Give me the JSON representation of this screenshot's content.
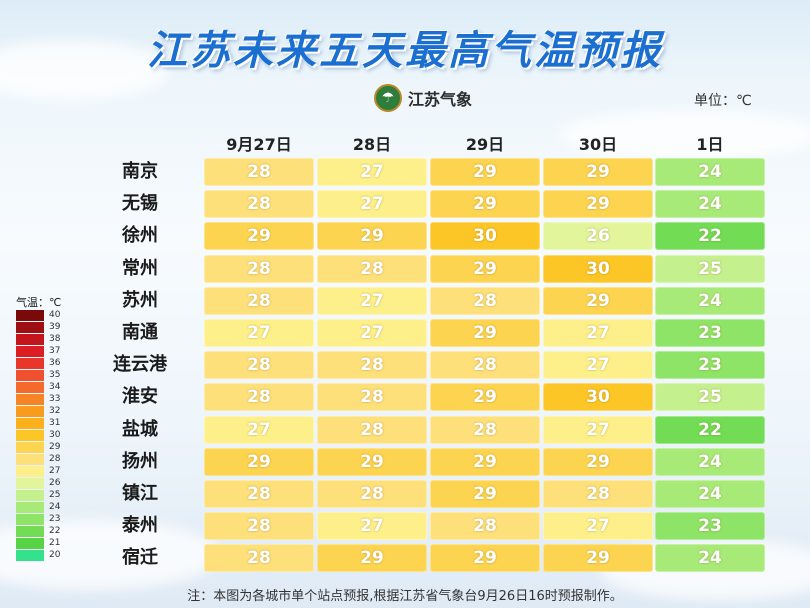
{
  "title": "江苏未来五天最高气温预报",
  "logo_text": "江苏气象",
  "unit": "单位：℃",
  "note": "注：本图为各城市单个站点预报,根据江苏省气象台9月26日16时预报制作。",
  "legend": {
    "title": "气温：℃",
    "levels": [
      {
        "v": "40",
        "color": "#7a0a0a"
      },
      {
        "v": "39",
        "color": "#9e0f14"
      },
      {
        "v": "38",
        "color": "#c4141c"
      },
      {
        "v": "37",
        "color": "#dc1e24"
      },
      {
        "v": "36",
        "color": "#e8362a"
      },
      {
        "v": "35",
        "color": "#ef5030"
      },
      {
        "v": "34",
        "color": "#f46a2c"
      },
      {
        "v": "33",
        "color": "#f78424"
      },
      {
        "v": "32",
        "color": "#f99c1e"
      },
      {
        "v": "31",
        "color": "#fbb01c"
      },
      {
        "v": "30",
        "color": "#fcc626"
      },
      {
        "v": "29",
        "color": "#fdd450"
      },
      {
        "v": "28",
        "color": "#fee07a"
      },
      {
        "v": "27",
        "color": "#fdf08a"
      },
      {
        "v": "26",
        "color": "#e2f59a"
      },
      {
        "v": "25",
        "color": "#c4f08e"
      },
      {
        "v": "24",
        "color": "#a8ea78"
      },
      {
        "v": "23",
        "color": "#8ee466"
      },
      {
        "v": "22",
        "color": "#72dc54"
      },
      {
        "v": "21",
        "color": "#56d446"
      },
      {
        "v": "20",
        "color": "#34e28c"
      }
    ]
  },
  "chart_data": {
    "type": "heatmap",
    "title": "江苏未来五天最高气温预报",
    "unit": "℃",
    "columns": [
      "9月27日",
      "28日",
      "29日",
      "30日",
      "1日"
    ],
    "rows": [
      "南京",
      "无锡",
      "徐州",
      "常州",
      "苏州",
      "南通",
      "连云港",
      "淮安",
      "盐城",
      "扬州",
      "镇江",
      "泰州",
      "宿迁"
    ],
    "values": [
      [
        28,
        27,
        29,
        29,
        24
      ],
      [
        28,
        27,
        29,
        29,
        24
      ],
      [
        29,
        29,
        30,
        26,
        22
      ],
      [
        28,
        28,
        29,
        30,
        25
      ],
      [
        28,
        27,
        28,
        29,
        24
      ],
      [
        27,
        27,
        29,
        27,
        23
      ],
      [
        28,
        28,
        28,
        27,
        23
      ],
      [
        28,
        28,
        29,
        30,
        25
      ],
      [
        27,
        28,
        28,
        27,
        22
      ],
      [
        29,
        29,
        29,
        29,
        24
      ],
      [
        28,
        28,
        29,
        28,
        24
      ],
      [
        28,
        27,
        28,
        27,
        23
      ],
      [
        28,
        29,
        29,
        29,
        24
      ]
    ]
  }
}
